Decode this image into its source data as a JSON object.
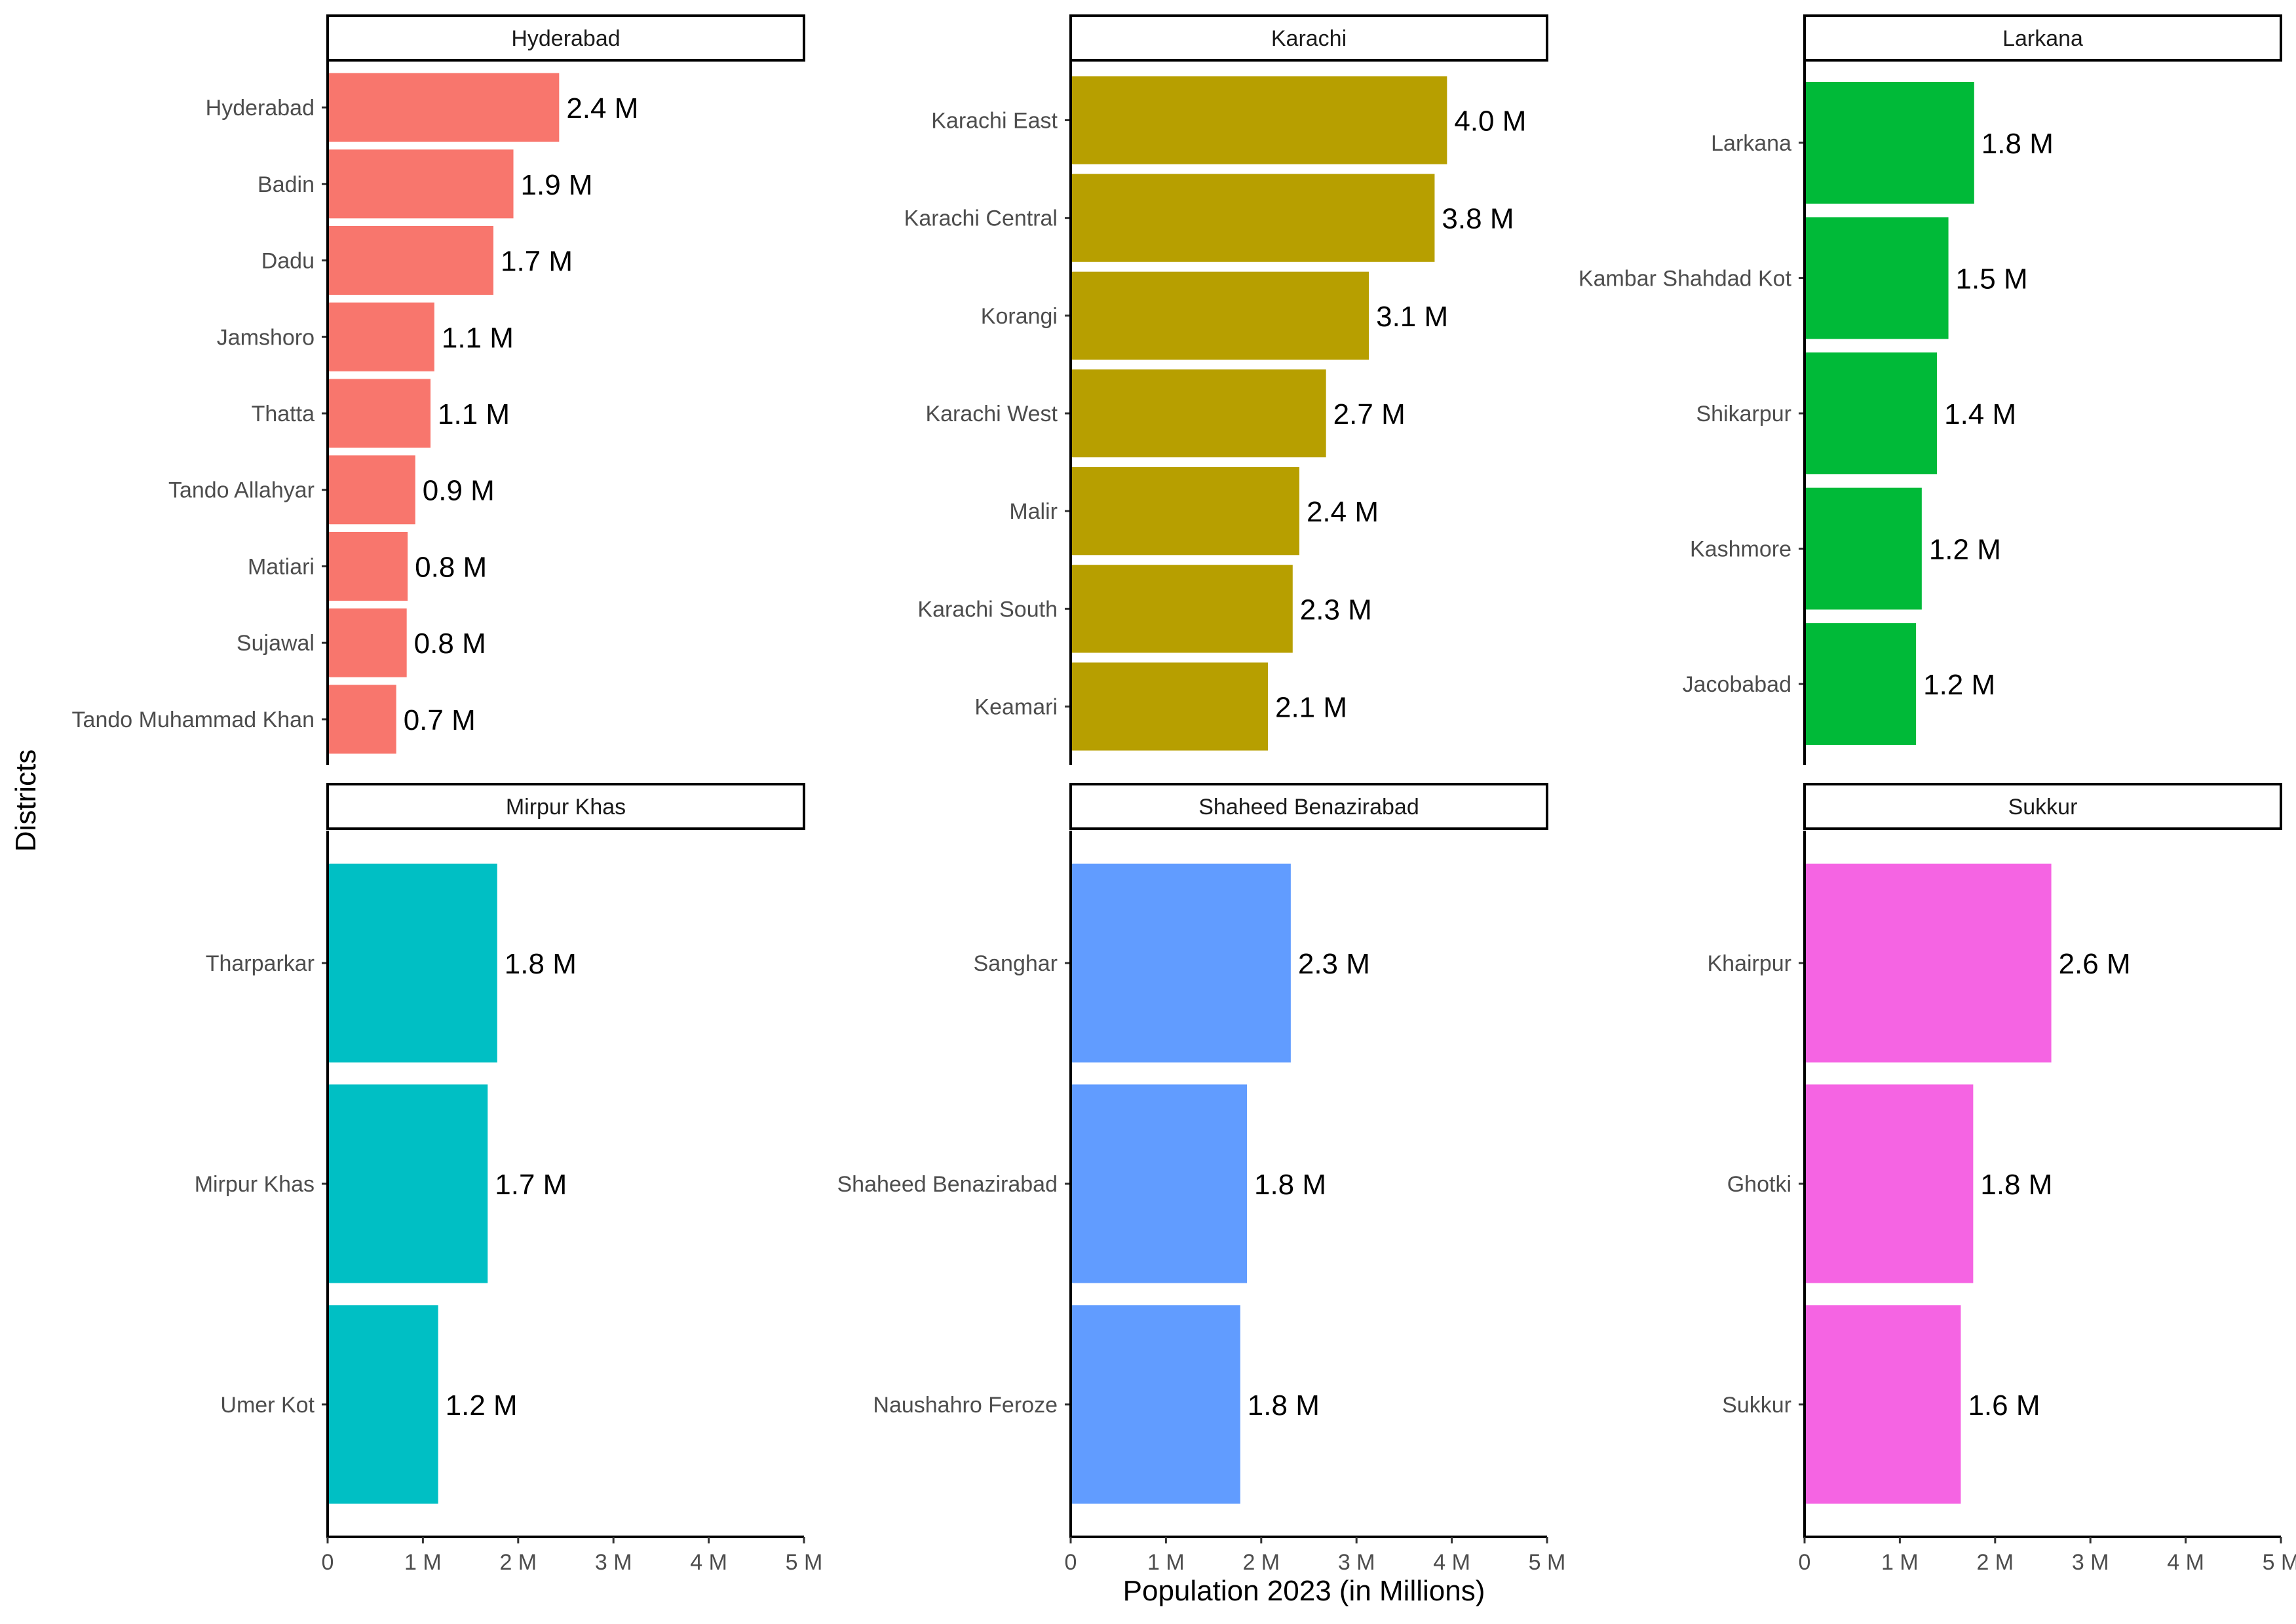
{
  "chart_data": {
    "type": "bar",
    "orientation": "horizontal",
    "xlabel": "Population 2023 (in Millions)",
    "ylabel": "Districts",
    "xlim": [
      0,
      5
    ],
    "x_ticks": [
      "0",
      "1 M",
      "2 M",
      "3 M",
      "4 M",
      "5 M"
    ],
    "grid": false,
    "legend": "none",
    "panels": [
      {
        "title": "Hyderabad",
        "color": "#F8766D",
        "categories": [
          "Hyderabad",
          "Badin",
          "Dadu",
          "Jamshoro",
          "Thatta",
          "Tando Allahyar",
          "Matiari",
          "Sujawal",
          "Tando Muhammad Khan"
        ],
        "values": [
          2.43,
          1.95,
          1.74,
          1.12,
          1.08,
          0.92,
          0.84,
          0.83,
          0.72
        ],
        "labels": [
          "2.4 M",
          "1.9 M",
          "1.7 M",
          "1.1 M",
          "1.1 M",
          "0.9 M",
          "0.8 M",
          "0.8 M",
          "0.7 M"
        ]
      },
      {
        "title": "Karachi",
        "color": "#B79F00",
        "categories": [
          "Karachi East",
          "Karachi Central",
          "Korangi",
          "Karachi West",
          "Malir",
          "Karachi South",
          "Keamari"
        ],
        "values": [
          3.95,
          3.82,
          3.13,
          2.68,
          2.4,
          2.33,
          2.07
        ],
        "labels": [
          "4.0 M",
          "3.8 M",
          "3.1 M",
          "2.7 M",
          "2.4 M",
          "2.3 M",
          "2.1 M"
        ]
      },
      {
        "title": "Larkana",
        "color": "#00BA38",
        "categories": [
          "Larkana",
          "Kambar Shahdad Kot",
          "Shikarpur",
          "Kashmore",
          "Jacobabad"
        ],
        "values": [
          1.78,
          1.51,
          1.39,
          1.23,
          1.17
        ],
        "labels": [
          "1.8 M",
          "1.5 M",
          "1.4 M",
          "1.2 M",
          "1.2 M"
        ]
      },
      {
        "title": "Mirpur Khas",
        "color": "#00BFC4",
        "categories": [
          "Tharparkar",
          "Mirpur Khas",
          "Umer Kot"
        ],
        "values": [
          1.78,
          1.68,
          1.16
        ],
        "labels": [
          "1.8 M",
          "1.7 M",
          "1.2 M"
        ]
      },
      {
        "title": "Shaheed Benazirabad",
        "color": "#619CFF",
        "categories": [
          "Sanghar",
          "Shaheed Benazirabad",
          "Naushahro Feroze"
        ],
        "values": [
          2.31,
          1.85,
          1.78
        ],
        "labels": [
          "2.3 M",
          "1.8 M",
          "1.8 M"
        ]
      },
      {
        "title": "Sukkur",
        "color": "#F564E3",
        "categories": [
          "Khairpur",
          "Ghotki",
          "Sukkur"
        ],
        "values": [
          2.59,
          1.77,
          1.64
        ],
        "labels": [
          "2.6 M",
          "1.8 M",
          "1.6 M"
        ]
      }
    ]
  }
}
